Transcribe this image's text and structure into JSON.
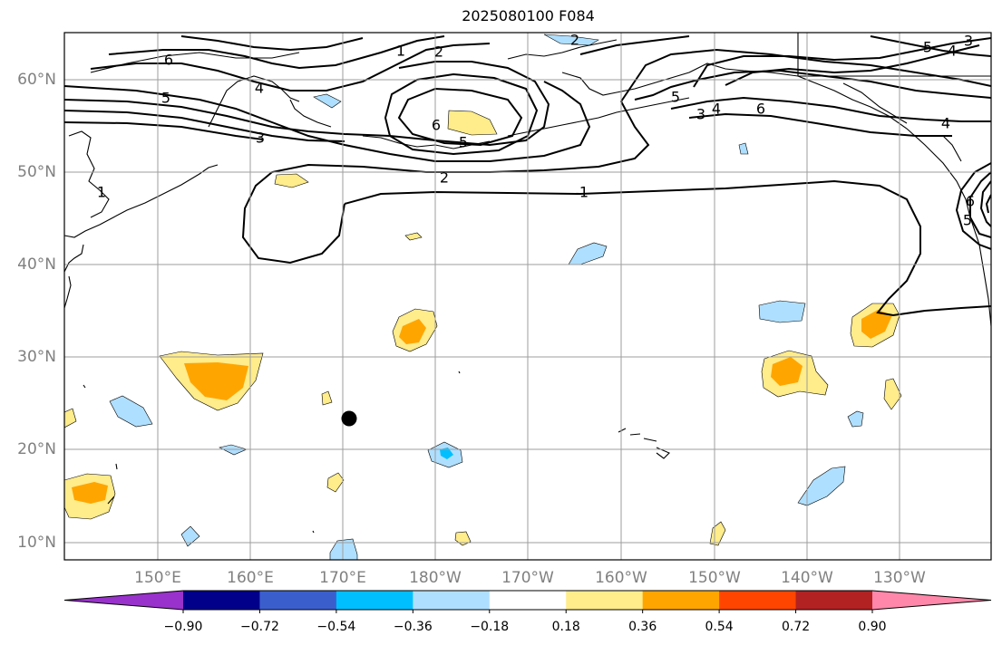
{
  "title": "2025080100 F084",
  "map": {
    "lat_labels": [
      "10°N",
      "20°N",
      "30°N",
      "40°N",
      "50°N",
      "60°N"
    ],
    "lon_labels": [
      "150°E",
      "160°E",
      "170°E",
      "180°W",
      "170°W",
      "160°W",
      "150°W",
      "140°W",
      "130°W"
    ],
    "grid": true,
    "marker": {
      "lon_east": 170.9,
      "lat": 23.3,
      "color": "#000000"
    }
  },
  "colorbar": {
    "tick_labels": [
      "−0.90",
      "−0.72",
      "−0.54",
      "−0.36",
      "−0.18",
      "0.18",
      "0.36",
      "0.54",
      "0.72",
      "0.90"
    ],
    "colors": [
      "#9932cc",
      "#00008b",
      "#3a5fcd",
      "#00bfff",
      "#afdfff",
      "#ffffff",
      "#ffec8b",
      "#ffa500",
      "#ff4500",
      "#b22222",
      "#ff88aa"
    ],
    "extend": "both"
  },
  "contour_labels": [
    "1",
    "2",
    "3",
    "4",
    "5",
    "6",
    "6",
    "5",
    "2",
    "1",
    "1",
    "2",
    "3",
    "4",
    "5",
    "6",
    "3",
    "4",
    "5",
    "6",
    "5",
    "4",
    "3",
    "6",
    "5",
    "1"
  ],
  "colors": {
    "positive_light": "#ffec8b",
    "positive_mid": "#ffa500",
    "negative_light": "#afdfff",
    "negative_mid": "#00bfff",
    "grid": "#9e9e9e",
    "coast": "#000000"
  }
}
